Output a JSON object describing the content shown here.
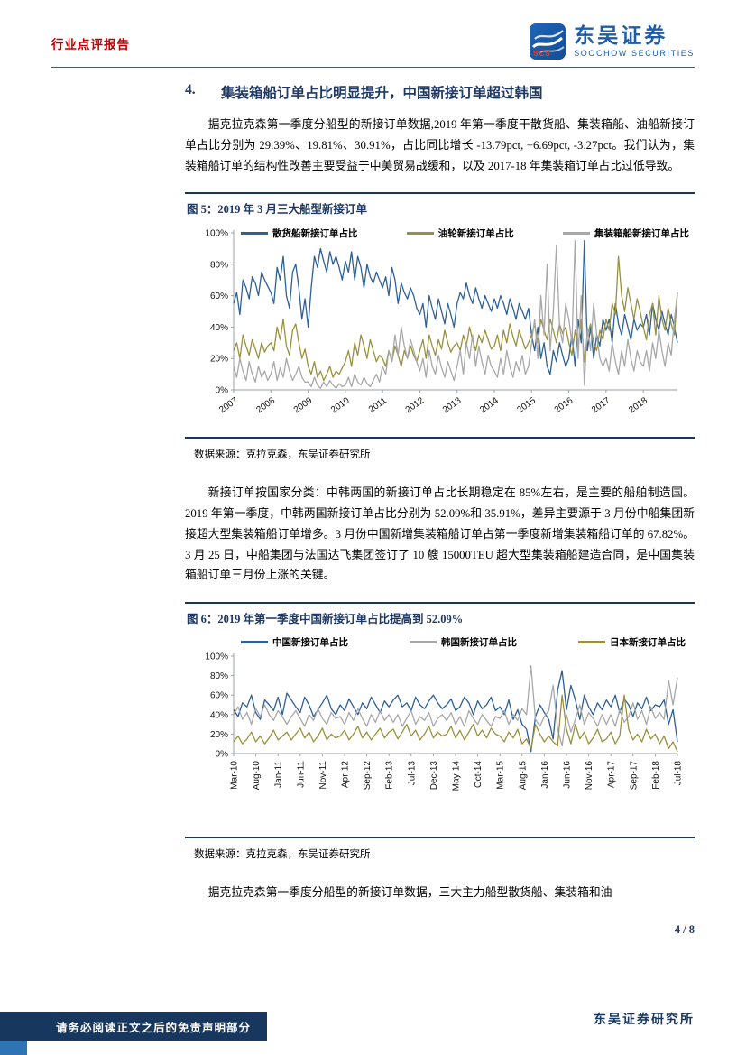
{
  "header": {
    "report_type": "行业点评报告",
    "brand_cn": "东吴证券",
    "brand_en": "SOOCHOW SECURITIES",
    "logo_letters": "SCS"
  },
  "section": {
    "number": "4.",
    "title": "集装箱船订单占比明显提升，中国新接订单超过韩国"
  },
  "paragraphs": {
    "p1": "据克拉克森第一季度分船型的新接订单数据,2019 年第一季度干散货船、集装箱船、油船新接订单占比分别为 29.39%、19.81%、30.91%，占比同比增长 -13.79pct, +6.69pct, -3.27pct。我们认为，集装箱船订单的结构性改善主要受益于中美贸易战缓和，以及 2017-18 年集装箱订单占比过低导致。",
    "p2": "新接订单按国家分类：中韩两国的新接订单占比长期稳定在 85%左右，是主要的船舶制造国。2019 年第一季度，中韩两国新接订单占比分别为 52.09%和 35.91%，差异主要源于 3 月份中船集团新接超大型集装箱船订单增多。3 月份中国新增集装箱船订单占第一季度新增集装箱船订单的 67.82%。3 月 25 日，中船集团与法国达飞集团签订了 10 艘 15000TEU 超大型集装箱船建造合同，是中国集装箱船订单三月份上涨的关键。",
    "p3": "据克拉克森第一季度分船型的新接订单数据，三大主力船型散货船、集装箱和油"
  },
  "figure5": {
    "title": "图 5：2019 年 3 月三大船型新接订单",
    "source": "数据来源：克拉克森，东吴证券研究所"
  },
  "figure6": {
    "title": "图 6：2019 年第一季度中国新接订单占比提高到 52.09%",
    "source": "数据来源：克拉克森，东吴证券研究所"
  },
  "footer": {
    "page": "4 / 8",
    "institute": "东吴证券研究所",
    "disclaimer": "请务必阅读正文之后的免责声明部分"
  },
  "chart_data": [
    {
      "type": "line",
      "title": "2019 年 3 月三大船型新接订单",
      "x_start": "2007-01",
      "x_end": "2018-12",
      "x_freq": "monthly",
      "xticks": [
        "2007",
        "2008",
        "2009",
        "2010",
        "2011",
        "2012",
        "2013",
        "2014",
        "2015",
        "2016",
        "2017",
        "2018"
      ],
      "xtick_step": 12,
      "yticks": [
        "0%",
        "20%",
        "40%",
        "60%",
        "80%",
        "100%"
      ],
      "ylim": [
        0,
        100
      ],
      "legend_position": "top-inside",
      "grid": false,
      "series": [
        {
          "name": "散货船新接订单占比",
          "color": "#2E6096",
          "values": [
            55,
            62,
            48,
            70,
            65,
            58,
            72,
            68,
            60,
            75,
            70,
            66,
            62,
            55,
            78,
            70,
            85,
            60,
            52,
            75,
            80,
            65,
            45,
            58,
            40,
            65,
            85,
            78,
            90,
            82,
            75,
            88,
            80,
            85,
            78,
            70,
            82,
            75,
            88,
            70,
            85,
            78,
            65,
            80,
            72,
            68,
            75,
            70,
            65,
            72,
            60,
            78,
            70,
            55,
            68,
            62,
            58,
            65,
            60,
            52,
            48,
            55,
            40,
            60,
            52,
            45,
            58,
            50,
            42,
            55,
            48,
            40,
            55,
            62,
            58,
            68,
            60,
            55,
            65,
            58,
            52,
            60,
            55,
            50,
            58,
            52,
            60,
            55,
            48,
            58,
            52,
            45,
            55,
            50,
            45,
            52,
            35,
            25,
            40,
            20,
            30,
            15,
            10,
            25,
            18,
            30,
            22,
            15,
            20,
            35,
            15,
            45,
            30,
            95,
            25,
            40,
            20,
            35,
            28,
            45,
            38,
            45,
            30,
            55,
            42,
            35,
            48,
            40,
            32,
            45,
            38,
            42,
            40,
            48,
            35,
            55,
            45,
            38,
            50,
            42,
            35,
            48,
            40,
            30
          ]
        },
        {
          "name": "油轮新接订单占比",
          "color": "#99913D",
          "values": [
            25,
            30,
            20,
            35,
            28,
            22,
            32,
            26,
            20,
            30,
            24,
            28,
            30,
            25,
            40,
            32,
            45,
            28,
            22,
            38,
            42,
            30,
            20,
            26,
            15,
            10,
            18,
            8,
            12,
            6,
            10,
            15,
            8,
            12,
            10,
            14,
            18,
            25,
            15,
            30,
            22,
            35,
            28,
            20,
            32,
            25,
            18,
            22,
            20,
            15,
            25,
            18,
            28,
            22,
            15,
            25,
            20,
            28,
            22,
            18,
            25,
            32,
            20,
            35,
            28,
            22,
            32,
            26,
            38,
            30,
            24,
            28,
            30,
            25,
            35,
            28,
            40,
            32,
            25,
            35,
            30,
            38,
            32,
            26,
            28,
            35,
            25,
            38,
            30,
            42,
            34,
            28,
            38,
            32,
            26,
            30,
            35,
            42,
            30,
            45,
            38,
            32,
            45,
            38,
            30,
            42,
            36,
            40,
            30,
            22,
            38,
            28,
            45,
            18,
            35,
            42,
            30,
            25,
            38,
            32,
            45,
            38,
            55,
            48,
            85,
            60,
            50,
            65,
            55,
            45,
            58,
            50,
            40,
            32,
            48,
            55,
            35,
            60,
            45,
            38,
            52,
            42,
            35,
            62
          ]
        },
        {
          "name": "集装箱船新接订单占比",
          "color": "#A8A8A8",
          "values": [
            15,
            8,
            20,
            12,
            6,
            18,
            10,
            5,
            15,
            8,
            12,
            6,
            10,
            18,
            6,
            14,
            8,
            20,
            12,
            6,
            10,
            15,
            8,
            5,
            5,
            2,
            8,
            3,
            1,
            5,
            2,
            6,
            3,
            1,
            4,
            2,
            3,
            8,
            2,
            10,
            5,
            3,
            8,
            4,
            2,
            6,
            10,
            5,
            15,
            10,
            25,
            18,
            35,
            22,
            40,
            28,
            20,
            32,
            25,
            18,
            12,
            20,
            8,
            25,
            15,
            10,
            22,
            14,
            8,
            18,
            12,
            6,
            15,
            25,
            10,
            30,
            20,
            35,
            15,
            28,
            18,
            10,
            22,
            15,
            12,
            8,
            20,
            10,
            25,
            15,
            8,
            18,
            12,
            22,
            10,
            15,
            30,
            45,
            20,
            60,
            35,
            80,
            25,
            50,
            92,
            40,
            30,
            55,
            45,
            30,
            95,
            20,
            60,
            3,
            40,
            25,
            55,
            35,
            20,
            15,
            20,
            12,
            30,
            18,
            10,
            25,
            15,
            32,
            20,
            12,
            25,
            18,
            15,
            25,
            12,
            30,
            20,
            38,
            25,
            15,
            30,
            22,
            45,
            62
          ]
        }
      ]
    },
    {
      "type": "line",
      "title": "2019 年第一季度中国新接订单占比提高到 52.09%",
      "x_start": "2010-03",
      "x_end": "2018-07",
      "x_freq": "monthly",
      "xticks": [
        "Mar-10",
        "Aug-10",
        "Jan-11",
        "Jun-11",
        "Nov-11",
        "Apr-12",
        "Sep-12",
        "Feb-13",
        "Jul-13",
        "Dec-13",
        "May-14",
        "Oct-14",
        "Mar-15",
        "Aug-15",
        "Jan-16",
        "Jun-16",
        "Nov-16",
        "Apr-17",
        "Sep-17",
        "Feb-18",
        "Jul-18"
      ],
      "xtick_step": 5,
      "yticks": [
        "0%",
        "20%",
        "40%",
        "60%",
        "80%",
        "100%"
      ],
      "ylim": [
        0,
        100
      ],
      "legend_position": "top",
      "grid": false,
      "series": [
        {
          "name": "中国新接订单占比",
          "color": "#2E6096",
          "values": [
            45,
            38,
            52,
            48,
            60,
            42,
            35,
            55,
            50,
            44,
            58,
            40,
            62,
            55,
            48,
            42,
            58,
            50,
            38,
            45,
            52,
            60,
            46,
            40,
            50,
            44,
            56,
            48,
            40,
            52,
            46,
            58,
            50,
            42,
            54,
            48,
            55,
            60,
            48,
            52,
            44,
            58,
            50,
            46,
            54,
            60,
            52,
            46,
            50,
            56,
            44,
            48,
            58,
            52,
            40,
            54,
            46,
            50,
            58,
            44,
            48,
            40,
            55,
            35,
            45,
            30,
            25,
            2,
            38,
            50,
            42,
            35,
            15,
            65,
            85,
            45,
            70,
            55,
            35,
            60,
            48,
            40,
            52,
            45,
            55,
            48,
            60,
            42,
            56,
            50,
            38,
            52,
            46,
            58,
            44,
            50,
            48,
            55,
            30,
            45,
            12
          ]
        },
        {
          "name": "韩国新接订单占比",
          "color": "#A8A8A8",
          "values": [
            40,
            48,
            35,
            42,
            30,
            46,
            38,
            50,
            40,
            34,
            44,
            38,
            30,
            38,
            44,
            36,
            28,
            40,
            34,
            46,
            36,
            30,
            42,
            36,
            38,
            30,
            42,
            34,
            46,
            36,
            28,
            40,
            32,
            44,
            34,
            40,
            32,
            40,
            28,
            36,
            44,
            30,
            38,
            34,
            42,
            28,
            36,
            40,
            34,
            42,
            30,
            38,
            28,
            44,
            36,
            30,
            40,
            34,
            28,
            38,
            36,
            44,
            30,
            40,
            34,
            46,
            40,
            90,
            35,
            28,
            38,
            44,
            70,
            25,
            8,
            40,
            22,
            35,
            50,
            30,
            42,
            36,
            28,
            40,
            30,
            40,
            28,
            45,
            32,
            38,
            52,
            35,
            44,
            30,
            48,
            36,
            42,
            35,
            75,
            50,
            78
          ]
        },
        {
          "name": "日本新接订单占比",
          "color": "#99913D",
          "values": [
            12,
            18,
            10,
            15,
            22,
            12,
            18,
            10,
            16,
            24,
            14,
            18,
            22,
            14,
            20,
            26,
            16,
            22,
            12,
            18,
            26,
            14,
            20,
            16,
            18,
            24,
            14,
            20,
            28,
            16,
            22,
            14,
            20,
            26,
            16,
            22,
            25,
            15,
            22,
            30,
            18,
            24,
            14,
            20,
            28,
            16,
            22,
            18,
            20,
            28,
            16,
            24,
            14,
            22,
            30,
            18,
            24,
            16,
            26,
            20,
            18,
            12,
            22,
            16,
            25,
            10,
            15,
            5,
            30,
            20,
            12,
            18,
            12,
            8,
            60,
            25,
            10,
            30,
            15,
            22,
            10,
            16,
            25,
            12,
            15,
            22,
            10,
            18,
            60,
            25,
            14,
            20,
            12,
            25,
            15,
            20,
            10,
            18,
            5,
            12,
            2
          ]
        }
      ]
    }
  ]
}
